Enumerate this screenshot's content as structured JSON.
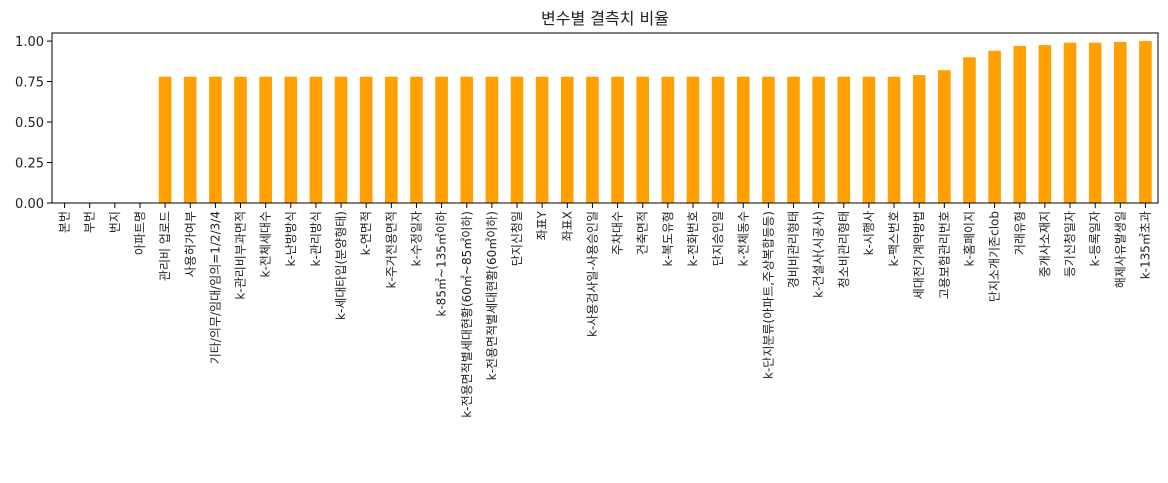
{
  "chart_data": {
    "type": "bar",
    "title": "변수별 결측치 비율",
    "xlabel": "",
    "ylabel": "",
    "ylim": [
      0,
      1.05
    ],
    "yticks": [
      "0.00",
      "0.25",
      "0.50",
      "0.75",
      "1.00"
    ],
    "ytick_values": [
      0,
      0.25,
      0.5,
      0.75,
      1.0
    ],
    "bar_color": "#ff9f00",
    "grid": false,
    "legend": "none",
    "categories": [
      "본번",
      "부번",
      "번지",
      "아파트명",
      "관리비 업로드",
      "사용허가여부",
      "기타/의무/임대/임의=1/2/3/4",
      "k-관리비부과면적",
      "k-전체세대수",
      "k-난방방식",
      "k-관리방식",
      "k-세대타입(분양형태)",
      "k-연면적",
      "k-주거전용면적",
      "k-수정일자",
      "k-85㎡~135㎡이하",
      "k-전용면적별세대현황(60㎡~85㎡이하)",
      "k-전용면적별세대현황(60㎡이하)",
      "단지신청일",
      "좌표Y",
      "좌표X",
      "k-사용검사일-사용승인일",
      "주차대수",
      "건축면적",
      "k-복도유형",
      "k-전화번호",
      "단지승인일",
      "k-전체동수",
      "k-단지분류(아파트,주상복합등등)",
      "경비비관리형태",
      "k-건설사(시공사)",
      "청소비관리형태",
      "k-시행사",
      "k-팩스번호",
      "세대전기계약방법",
      "고용보험관리번호",
      "k-홈페이지",
      "단지소개기존clob",
      "거래유형",
      "중개사소재지",
      "등기신청일자",
      "k-등록일자",
      "해제사유발생일",
      "k-135㎡초과"
    ],
    "values": [
      0,
      0,
      0,
      0,
      0.78,
      0.78,
      0.78,
      0.78,
      0.78,
      0.78,
      0.78,
      0.78,
      0.78,
      0.78,
      0.78,
      0.78,
      0.78,
      0.78,
      0.78,
      0.78,
      0.78,
      0.78,
      0.78,
      0.78,
      0.78,
      0.78,
      0.78,
      0.78,
      0.78,
      0.78,
      0.78,
      0.78,
      0.78,
      0.78,
      0.79,
      0.82,
      0.9,
      0.94,
      0.97,
      0.975,
      0.99,
      0.99,
      0.995,
      1.0
    ]
  }
}
